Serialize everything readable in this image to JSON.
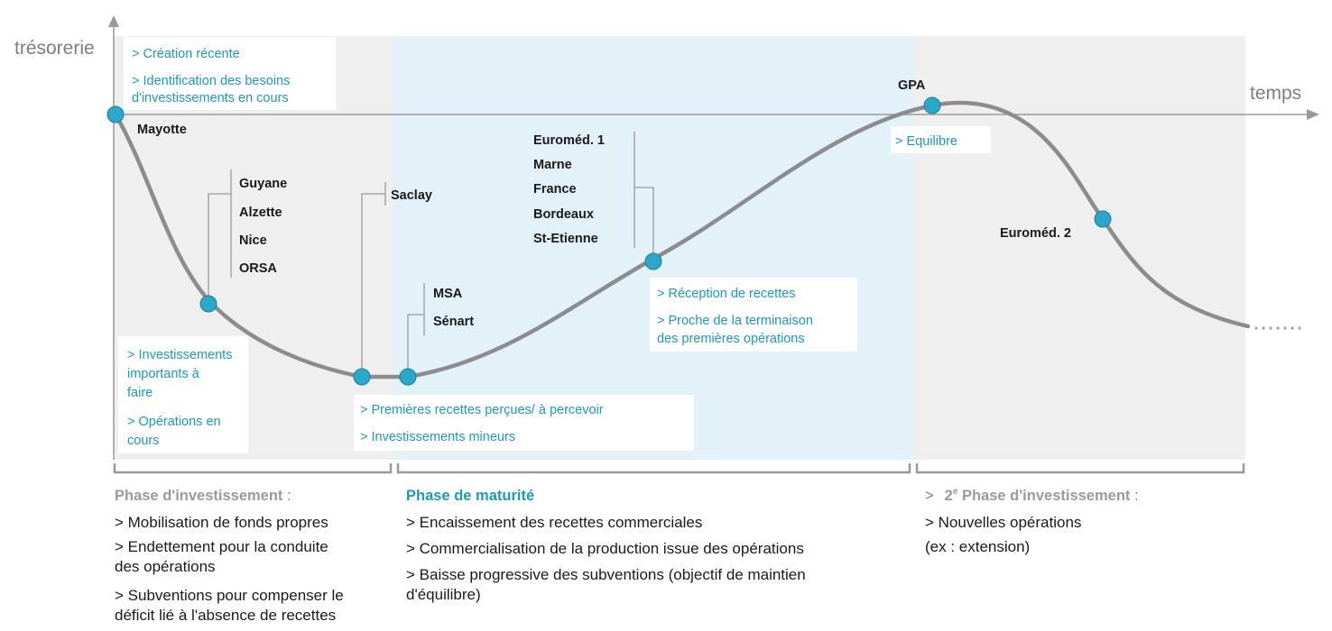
{
  "axes": {
    "y_label": "trésorerie",
    "x_label": "temps"
  },
  "operations": {
    "mayotte": "Mayotte",
    "group1": [
      "Guyane",
      "Alzette",
      "Nice",
      "ORSA"
    ],
    "saclay": "Saclay",
    "group2": [
      "MSA",
      "Sénart"
    ],
    "group3": [
      "Euroméd. 1",
      "Marne",
      "France",
      "Bordeaux",
      "St-Etienne"
    ],
    "gpa": "GPA",
    "euromed2": "Euroméd. 2"
  },
  "notes": {
    "creation": [
      ">  Création récente",
      ">  Identification des besoins",
      "    d'investissements en cours"
    ],
    "invest": [
      "> Investissements",
      "   importants à",
      "   faire",
      "> Opérations en",
      "   cours"
    ],
    "premieres": [
      ">  Premières recettes perçues/ à percevoir",
      ">  Investissements mineurs"
    ],
    "reception": [
      ">  Réception de recettes",
      ">  Proche de la terminaison",
      "    des premières opérations"
    ],
    "equilibre": [
      ">  Equilibre"
    ]
  },
  "phases": {
    "investissement": {
      "title": "Phase d'investissement",
      "title_suffix": " :",
      "items": [
        ">  Mobilisation de fonds propres",
        ">  Endettement pour la conduite",
        "    des opérations",
        ">  Subventions pour compenser le",
        "    déficit lié à l'absence de recettes"
      ]
    },
    "maturite": {
      "title": "Phase de maturité",
      "items": [
        ">  Encaissement des recettes commerciales",
        ">  Commercialisation de la production issue des opérations",
        ">  Baisse progressive des subventions (objectif de maintien",
        "    d'équilibre)"
      ]
    },
    "second": {
      "prefix": ">",
      "number": "2",
      "sup": "e",
      "title": " Phase d'investissement",
      "title_suffix": " :",
      "items": [
        ">  Nouvelles opérations",
        "    (ex : extension)"
      ]
    }
  },
  "colors": {
    "curve": "#8c8c8c",
    "dot": "#29a8cc",
    "accent": "#1a9bb8",
    "gray_band": "#efefef",
    "blue_band": "#e3f1f8",
    "axis": "#9a9a9a",
    "text_gray": "#9a9a9a"
  }
}
